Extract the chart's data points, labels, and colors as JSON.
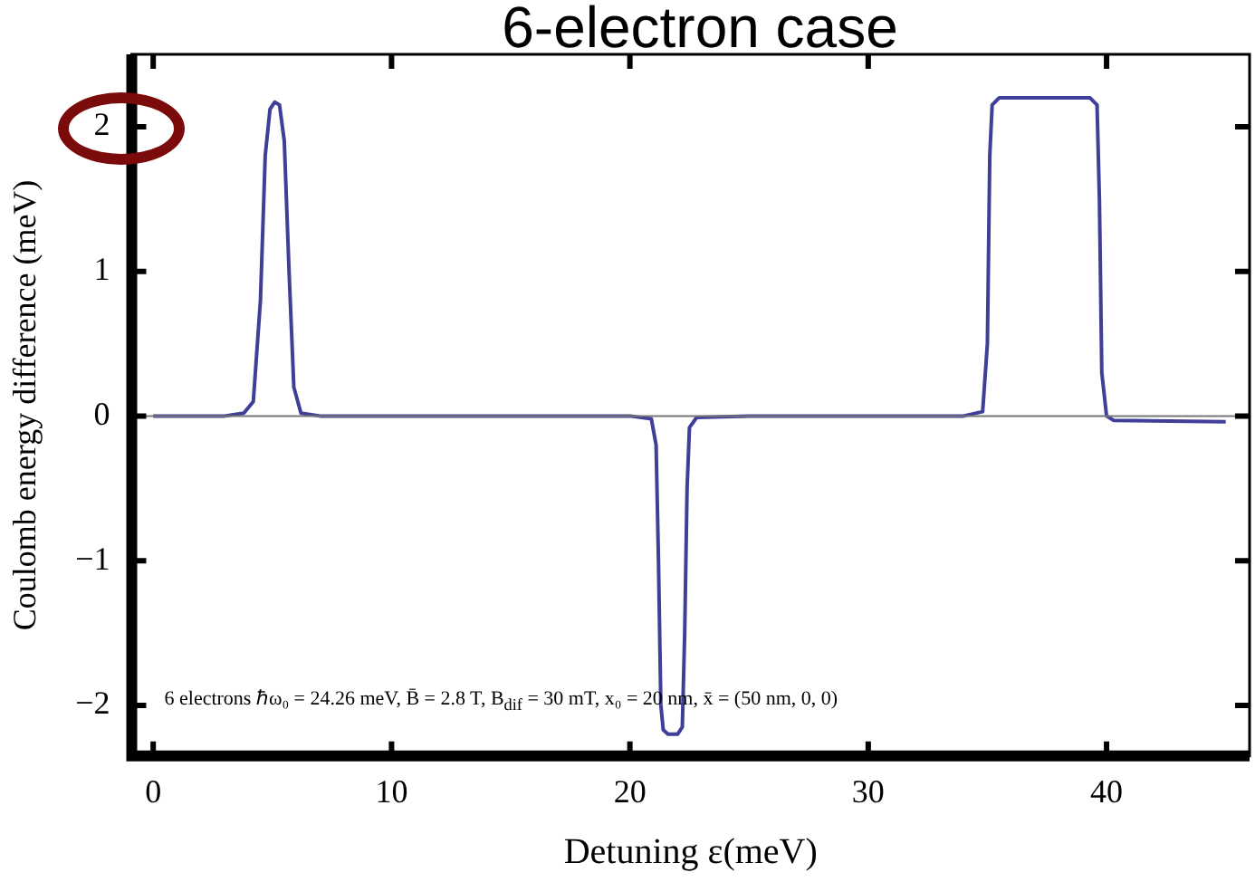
{
  "chart_data": {
    "type": "line",
    "title": "6-electron case",
    "xlabel": "Detuning ε(meV)",
    "ylabel": "Coulomb energy difference (meV)",
    "x": [
      0,
      3,
      3.8,
      4.2,
      4.5,
      4.7,
      4.9,
      5.1,
      5.3,
      5.5,
      5.7,
      5.9,
      6.2,
      7,
      15,
      20,
      20.9,
      21.1,
      21.2,
      21.3,
      21.4,
      21.6,
      22.0,
      22.2,
      22.3,
      22.4,
      22.5,
      22.8,
      25,
      34,
      34.8,
      35.0,
      35.1,
      35.2,
      35.5,
      39.3,
      39.6,
      39.7,
      39.8,
      40,
      40.3,
      45
    ],
    "series": [
      {
        "color": "#3f3f9a",
        "values": [
          0,
          0,
          0.02,
          0.1,
          0.8,
          1.8,
          2.12,
          2.17,
          2.15,
          1.9,
          1.0,
          0.2,
          0.02,
          0,
          0,
          0,
          -0.02,
          -0.2,
          -1.0,
          -2.0,
          -2.17,
          -2.2,
          -2.2,
          -2.15,
          -1.5,
          -0.5,
          -0.08,
          -0.01,
          0,
          0,
          0.03,
          0.5,
          1.8,
          2.15,
          2.2,
          2.2,
          2.15,
          1.5,
          0.3,
          0,
          -0.03,
          -0.04
        ]
      }
    ],
    "xlim": [
      -0.9,
      46
    ],
    "ylim": [
      -2.35,
      2.5
    ],
    "xticks": [
      0,
      10,
      20,
      30,
      40
    ],
    "yticks": [
      -2,
      -1,
      0,
      1,
      2
    ],
    "ref_lines": [
      {
        "axis": "y",
        "value": 0,
        "color": "#777777"
      }
    ],
    "annotations": [
      {
        "text": "6 electrons  ℏω₀ = 24.26 meV, B̄ = 2.8 T, B$_{dif}$ = 30 mT, x₀ = 20 nm, x̄ = (50 nm, 0, 0)"
      }
    ],
    "grid": false,
    "legend": false,
    "marker": "none",
    "line_style": "solid"
  }
}
